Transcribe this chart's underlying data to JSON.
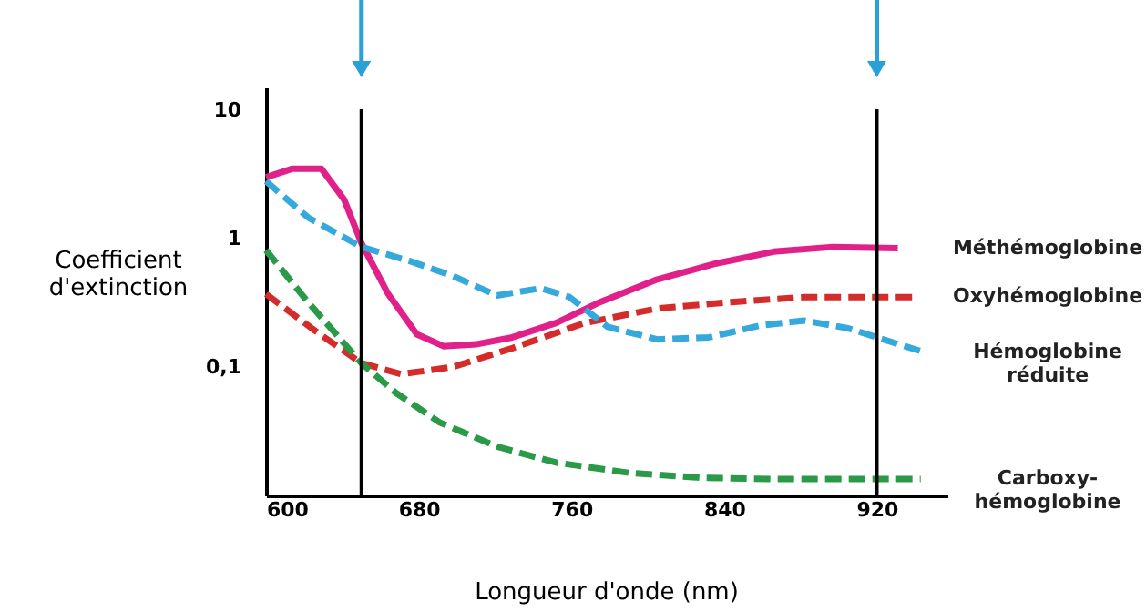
{
  "chart_data": {
    "type": "line",
    "xlabel": "Longueur d'onde (nm)",
    "ylabel": "Coefficient\nd'extinction",
    "log": "y",
    "xlim": [
      600,
      957
    ],
    "xticks": [
      600,
      680,
      760,
      840,
      920
    ],
    "ylim": [
      0.01,
      15
    ],
    "yticks": [
      {
        "value": 0.1,
        "label": "0,1"
      },
      1,
      10
    ],
    "grid": false,
    "marker": "none",
    "ref_lines": [
      {
        "axis": "x",
        "value": 650,
        "color": "#000000"
      },
      {
        "axis": "x",
        "value": 920,
        "color": "#000000"
      }
    ],
    "series": [
      {
        "name": "Méthémoglobine",
        "color": "#e0218a",
        "line_style": "solid",
        "x": [
          600,
          614,
          629,
          641,
          650,
          664,
          679,
          693,
          710,
          729,
          752,
          775,
          805,
          836,
          866,
          897,
          931
        ],
        "values": [
          3.0,
          3.5,
          3.5,
          2.0,
          0.92,
          0.37,
          0.18,
          0.145,
          0.15,
          0.17,
          0.22,
          0.32,
          0.48,
          0.64,
          0.79,
          0.86,
          0.84
        ]
      },
      {
        "name": "Oxyhémoglobine",
        "color": "#d42b2b",
        "line_style": "dashed",
        "x": [
          600,
          626,
          650,
          671,
          698,
          729,
          767,
          805,
          844,
          882,
          939
        ],
        "values": [
          0.37,
          0.19,
          0.107,
          0.088,
          0.1,
          0.14,
          0.22,
          0.285,
          0.32,
          0.35,
          0.35
        ]
      },
      {
        "name": "Hémoglobine\nréduite",
        "color": "#35a8dc",
        "line_style": "dashed",
        "x": [
          600,
          622,
          650,
          675,
          698,
          721,
          744,
          759,
          779,
          805,
          832,
          859,
          882,
          905,
          920,
          945
        ],
        "values": [
          2.8,
          1.46,
          0.86,
          0.67,
          0.51,
          0.36,
          0.41,
          0.35,
          0.205,
          0.164,
          0.17,
          0.21,
          0.23,
          0.2,
          0.17,
          0.13
        ]
      },
      {
        "name": "Carboxy-\nhémoglobine",
        "color": "#2a9a48",
        "line_style": "dashed",
        "x": [
          600,
          622,
          650,
          668,
          691,
          721,
          752,
          790,
          829,
          866,
          943
        ],
        "values": [
          0.81,
          0.32,
          0.107,
          0.063,
          0.037,
          0.024,
          0.018,
          0.015,
          0.0137,
          0.0134,
          0.0134
        ]
      }
    ]
  }
}
